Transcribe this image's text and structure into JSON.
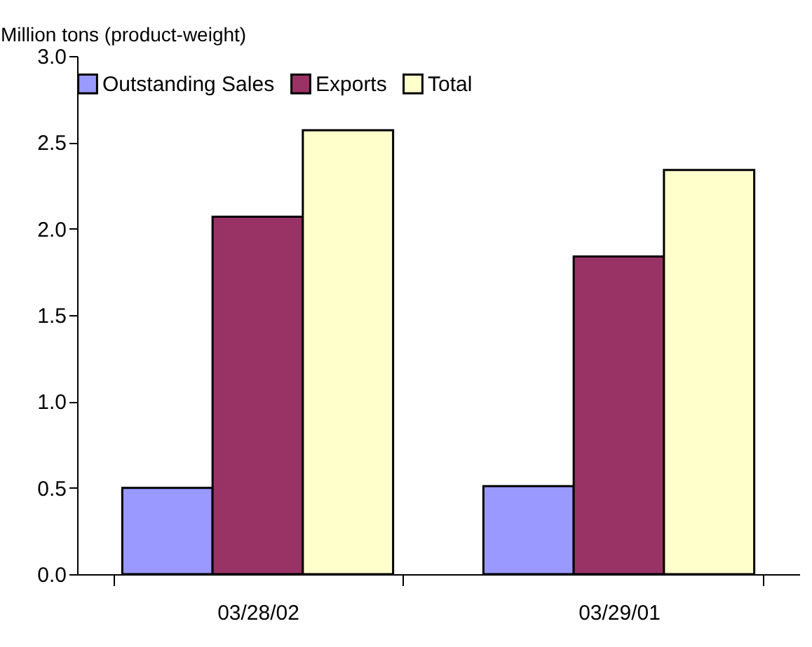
{
  "chart_data": {
    "type": "bar",
    "ylabel": "Million tons (product-weight)",
    "categories": [
      "03/28/02",
      "03/29/01"
    ],
    "series": [
      {
        "name": "Outstanding Sales",
        "color": "#9999ff",
        "values": [
          0.5,
          0.51
        ]
      },
      {
        "name": "Exports",
        "color": "#993366",
        "values": [
          2.07,
          1.84
        ]
      },
      {
        "name": "Total",
        "color": "#ffffcc",
        "values": [
          2.57,
          2.34
        ]
      }
    ],
    "ylim": [
      0,
      3.0
    ],
    "yticks": [
      {
        "value": 0,
        "label": "0.0"
      },
      {
        "value": 0.5,
        "label": "0.5"
      },
      {
        "value": 1,
        "label": "1.0"
      },
      {
        "value": 1.5,
        "label": "1.5"
      },
      {
        "value": 2,
        "label": "2.0"
      },
      {
        "value": 2.5,
        "label": "2.5"
      },
      {
        "value": 3,
        "label": "3.0"
      }
    ],
    "grid": false,
    "legend": "top"
  }
}
